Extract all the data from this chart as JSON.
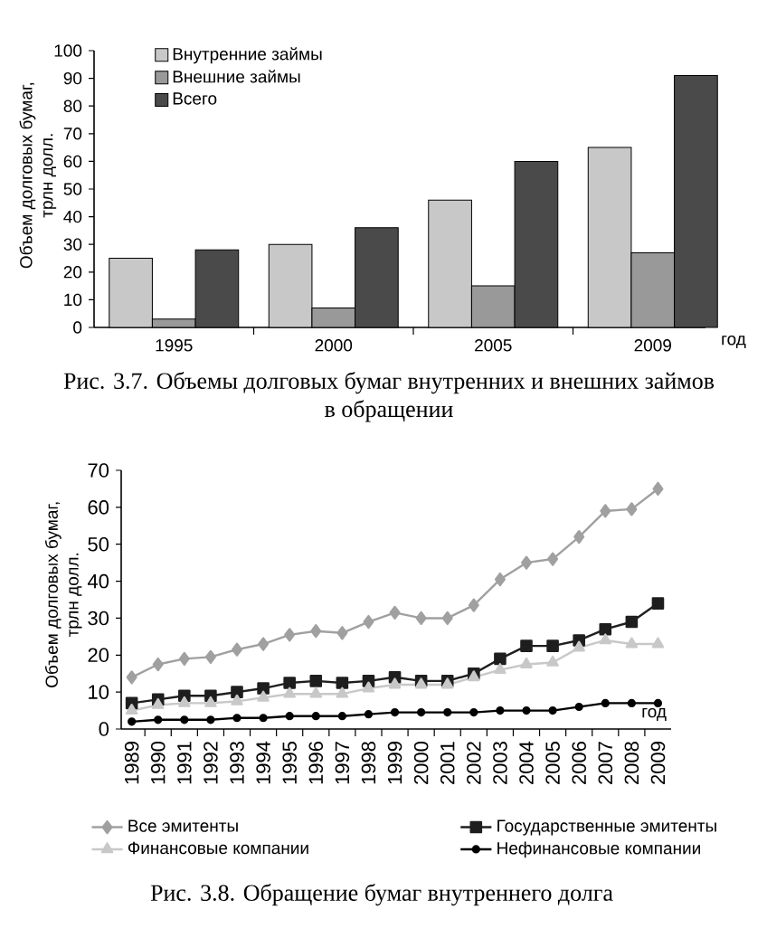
{
  "chart_data": [
    {
      "type": "bar",
      "title": "Рис. 3.7. Объемы долговых бумаг внутренних и внешних займов в обращении",
      "xlabel": "год",
      "ylabel": "Объем долговых бумаг, трлн долл.",
      "categories": [
        "1995",
        "2000",
        "2005",
        "2009"
      ],
      "series": [
        {
          "name": "Внутренние займы",
          "color": "#c8c8c8",
          "values": [
            25,
            30,
            46,
            65
          ]
        },
        {
          "name": "Внешние займы",
          "color": "#999999",
          "values": [
            3,
            7,
            15,
            27
          ]
        },
        {
          "name": "Всего",
          "color": "#4a4a4a",
          "values": [
            28,
            36,
            60,
            91
          ]
        }
      ],
      "ylim": [
        0,
        100
      ],
      "yticks": [
        0,
        10,
        20,
        30,
        40,
        50,
        60,
        70,
        80,
        90,
        100
      ],
      "legend": "top left"
    },
    {
      "type": "line",
      "title": "Рис. 3.8. Обращение бумаг внутреннего долга",
      "xlabel": "год",
      "ylabel": "Объем долговых бумаг, трлн долл.",
      "categories": [
        "1989",
        "1990",
        "1991",
        "1992",
        "1993",
        "1994",
        "1995",
        "1996",
        "1997",
        "1998",
        "1999",
        "2000",
        "2001",
        "2002",
        "2003",
        "2004",
        "2005",
        "2006",
        "2007",
        "2008",
        "2009"
      ],
      "series": [
        {
          "name": "Все эмитенты",
          "color": "#a0a0a0",
          "marker": "diamond",
          "values": [
            14,
            17.5,
            19,
            19.5,
            21.5,
            23,
            25.5,
            26.5,
            26,
            29,
            31.5,
            30,
            30,
            33.5,
            40.5,
            45,
            46,
            52,
            59,
            59.5,
            65
          ]
        },
        {
          "name": "Государственные эмитенты",
          "color": "#1e1e1e",
          "marker": "square",
          "values": [
            7,
            8,
            9,
            9,
            10,
            11,
            12.5,
            13,
            12.5,
            13,
            14,
            13,
            13,
            15,
            19,
            22.5,
            22.5,
            24,
            27,
            29,
            34
          ]
        },
        {
          "name": "Финансовые компании",
          "color": "#c8c8c8",
          "marker": "triangle",
          "values": [
            5,
            6.5,
            7,
            7,
            7.5,
            8.5,
            9.5,
            9.5,
            9.5,
            11,
            12,
            12,
            12,
            14,
            16,
            17.5,
            18,
            22,
            24,
            23,
            23
          ]
        },
        {
          "name": "Нефинансовые компании",
          "color": "#000000",
          "marker": "circle",
          "values": [
            2,
            2.5,
            2.5,
            2.5,
            3,
            3,
            3.5,
            3.5,
            3.5,
            4,
            4.5,
            4.5,
            4.5,
            4.5,
            5,
            5,
            5,
            6,
            7,
            7,
            7
          ]
        }
      ],
      "ylim": [
        0,
        70
      ],
      "yticks": [
        0,
        10,
        20,
        30,
        40,
        50,
        60,
        70
      ],
      "legend": "bottom"
    }
  ]
}
